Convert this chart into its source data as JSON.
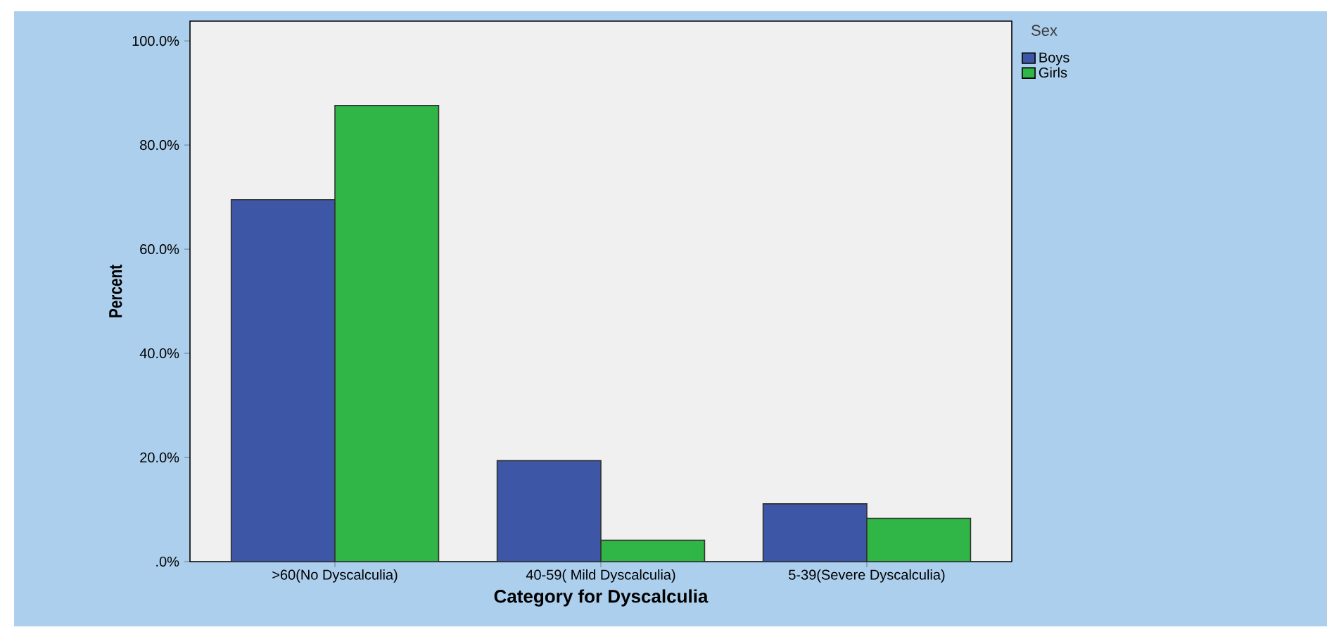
{
  "chart_data": {
    "type": "bar",
    "xlabel": "Category for Dyscalculia",
    "ylabel": "Percent",
    "legend_title": "Sex",
    "legend": "top right",
    "categories": [
      ">60(No Dyscalculia)",
      "40-59( Mild Dyscalculia)",
      "5-39(Severe Dyscalculia)"
    ],
    "series": [
      {
        "name": "Boys",
        "color": "#3d56a6",
        "values": [
          69.5,
          19.4,
          11.1
        ]
      },
      {
        "name": "Girls",
        "color": "#30b646",
        "values": [
          87.6,
          4.1,
          8.3
        ]
      }
    ],
    "ylim": [
      0,
      103.8
    ],
    "yticks": [
      {
        "value": 0,
        "label": ".0%"
      },
      {
        "value": 20,
        "label": "20.0%"
      },
      {
        "value": 40,
        "label": "40.0%"
      },
      {
        "value": 60,
        "label": "60.0%"
      },
      {
        "value": 80,
        "label": "80.0%"
      },
      {
        "value": 100,
        "label": "100.0%"
      }
    ]
  }
}
